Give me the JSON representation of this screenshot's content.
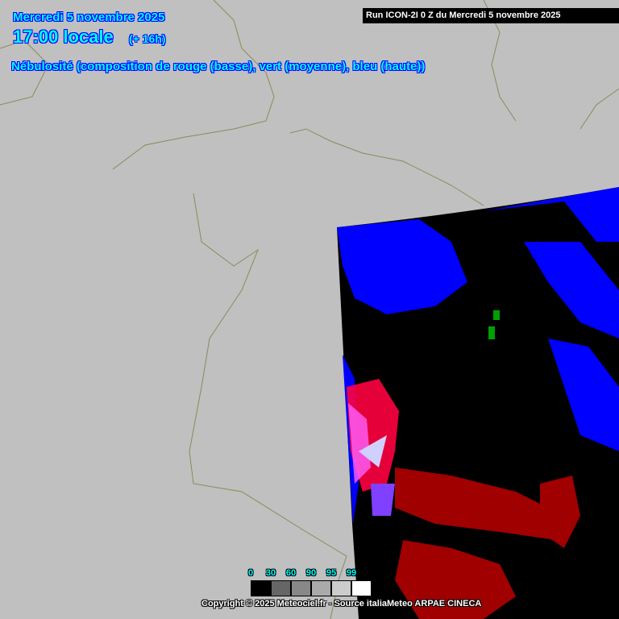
{
  "header": {
    "date": "Mercredi 5 novembre 2025",
    "time": "17:00 locale",
    "lead": "(+ 16h)",
    "title": "Nébulosité (composition de rouge (basse), vert (moyenne), bleu (haute))",
    "run": "Run ICON-2I 0 Z du Mercredi 5 novembre 2025"
  },
  "legend": {
    "labels": [
      "0",
      "30",
      "60",
      "90",
      "95",
      "99"
    ],
    "colors": [
      "#000000",
      "#666666",
      "#888888",
      "#aaaaaa",
      "#cccccc",
      "#ffffff"
    ]
  },
  "footer": {
    "copyright": "Copyright © 2025 Meteociel.fr - Source italiaMeteo ARPAE CINECA"
  },
  "colors": {
    "background": "#c0c0c0",
    "border": "#8a8a5a",
    "low_cloud": "#a00000",
    "high_cloud": "#0000ff",
    "mid_cloud": "#00a000"
  }
}
